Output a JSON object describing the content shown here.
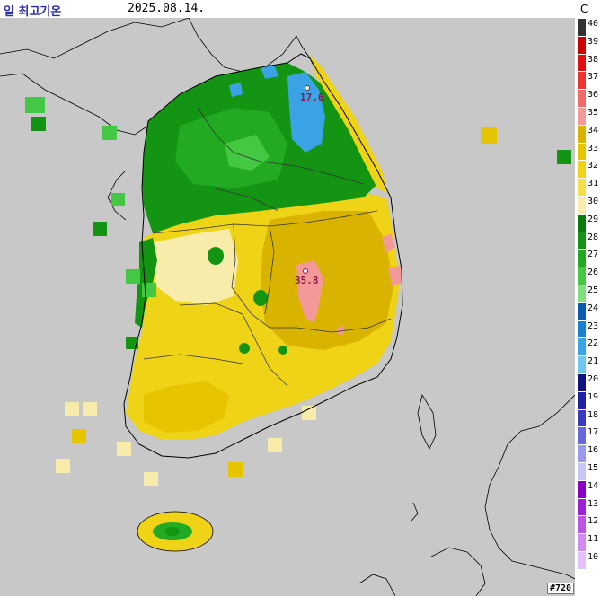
{
  "header": {
    "title": "일 최고기온",
    "date": "2025.08.14."
  },
  "legend": {
    "unit": "C",
    "levels": [
      {
        "value": "40",
        "color": "#333333"
      },
      {
        "value": "39",
        "color": "#cc0000"
      },
      {
        "value": "38",
        "color": "#e01010"
      },
      {
        "value": "37",
        "color": "#ee3333"
      },
      {
        "value": "36",
        "color": "#f06a6a"
      },
      {
        "value": "35",
        "color": "#f49999"
      },
      {
        "value": "34",
        "color": "#d8b400"
      },
      {
        "value": "33",
        "color": "#e6c400"
      },
      {
        "value": "32",
        "color": "#efd316"
      },
      {
        "value": "31",
        "color": "#f3df4a"
      },
      {
        "value": "30",
        "color": "#f8ecaa"
      },
      {
        "value": "29",
        "color": "#0a7a0a"
      },
      {
        "value": "28",
        "color": "#139413"
      },
      {
        "value": "27",
        "color": "#22ab22"
      },
      {
        "value": "26",
        "color": "#44c844"
      },
      {
        "value": "25",
        "color": "#80e080"
      },
      {
        "value": "24",
        "color": "#0a5cb0"
      },
      {
        "value": "23",
        "color": "#1a80d0"
      },
      {
        "value": "22",
        "color": "#3aa3e6"
      },
      {
        "value": "21",
        "color": "#6ec6f2"
      },
      {
        "value": "20",
        "color": "#101080"
      },
      {
        "value": "19",
        "color": "#2020a0"
      },
      {
        "value": "18",
        "color": "#3a3ac0"
      },
      {
        "value": "17",
        "color": "#6666dd"
      },
      {
        "value": "16",
        "color": "#9999ee"
      },
      {
        "value": "15",
        "color": "#c8c8f8"
      },
      {
        "value": "14",
        "color": "#8a00c8"
      },
      {
        "value": "13",
        "color": "#a020d8"
      },
      {
        "value": "12",
        "color": "#bb55e6"
      },
      {
        "value": "11",
        "color": "#d08af0"
      },
      {
        "value": "10",
        "color": "#e6c0f8"
      }
    ]
  },
  "stations": [
    {
      "label": "17.6"
    },
    {
      "label": "35.8"
    }
  ],
  "map_id": "#720",
  "colors": {
    "background": "#c8c8c8",
    "coastline": "#000000"
  }
}
